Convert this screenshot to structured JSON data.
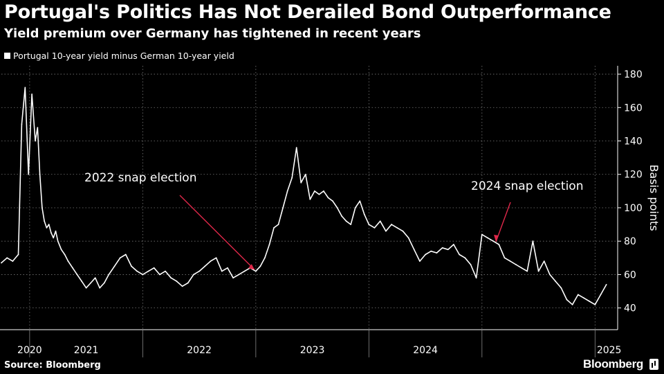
{
  "header": {
    "title": "Portugal's Politics Has Not Derailed Bond Outperformance",
    "subtitle": "Yield premium over Germany has tightened in recent years"
  },
  "legend": {
    "label": "Portugal 10-year yield minus German 10-year yield"
  },
  "footer": {
    "source": "Source: Bloomberg",
    "brand": "Bloomberg"
  },
  "colors": {
    "background": "#000000",
    "line": "#ffffff",
    "annotation_arrow": "#e0284a",
    "grid": "#7a7a7a"
  },
  "chart_data": {
    "type": "line",
    "title": "Portugal's Politics Has Not Derailed Bond Outperformance",
    "subtitle": "Yield premium over Germany has tightened in recent years",
    "xlabel": "",
    "ylabel": "Basis points",
    "ylim": [
      27,
      185
    ],
    "xlim": [
      2019.75,
      2025.2
    ],
    "y_ticks": [
      40,
      60,
      80,
      100,
      120,
      140,
      160,
      180
    ],
    "x_tick_labels": [
      "2020",
      "2021",
      "2022",
      "2023",
      "2024",
      "2025"
    ],
    "year_boundaries": [
      2020.0,
      2021.0,
      2022.0,
      2023.0,
      2024.0,
      2025.0
    ],
    "grid": true,
    "y_axis_position": "right",
    "series": [
      {
        "name": "Portugal 10-year yield minus German 10-year yield",
        "x": [
          2019.75,
          2019.8,
          2019.85,
          2019.9,
          2019.93,
          2019.96,
          2019.99,
          2020.02,
          2020.05,
          2020.07,
          2020.09,
          2020.11,
          2020.13,
          2020.15,
          2020.17,
          2020.19,
          2020.21,
          2020.23,
          2020.25,
          2020.28,
          2020.31,
          2020.34,
          2020.38,
          2020.42,
          2020.46,
          2020.5,
          2020.54,
          2020.58,
          2020.62,
          2020.66,
          2020.7,
          2020.75,
          2020.8,
          2020.85,
          2020.9,
          2020.95,
          2021.0,
          2021.05,
          2021.1,
          2021.15,
          2021.2,
          2021.25,
          2021.3,
          2021.35,
          2021.4,
          2021.45,
          2021.5,
          2021.55,
          2021.6,
          2021.65,
          2021.7,
          2021.75,
          2021.8,
          2021.85,
          2021.9,
          2021.95,
          2022.0,
          2022.04,
          2022.08,
          2022.12,
          2022.16,
          2022.2,
          2022.24,
          2022.28,
          2022.32,
          2022.36,
          2022.4,
          2022.44,
          2022.48,
          2022.52,
          2022.56,
          2022.6,
          2022.64,
          2022.68,
          2022.72,
          2022.76,
          2022.8,
          2022.84,
          2022.88,
          2022.92,
          2022.96,
          2023.0,
          2023.05,
          2023.1,
          2023.15,
          2023.2,
          2023.25,
          2023.3,
          2023.35,
          2023.4,
          2023.45,
          2023.5,
          2023.55,
          2023.6,
          2023.65,
          2023.7,
          2023.75,
          2023.8,
          2023.85,
          2023.9,
          2023.95,
          2024.0,
          2024.05,
          2024.1,
          2024.15,
          2024.2,
          2024.25,
          2024.3,
          2024.35,
          2024.4,
          2024.45,
          2024.5,
          2024.55,
          2024.6,
          2024.65,
          2024.7,
          2024.75,
          2024.8,
          2024.85,
          2024.9,
          2024.95,
          2025.0,
          2025.05,
          2025.1
        ],
        "values": [
          67,
          70,
          68,
          72,
          150,
          172,
          120,
          168,
          140,
          148,
          120,
          100,
          92,
          88,
          90,
          85,
          82,
          86,
          80,
          75,
          72,
          68,
          64,
          60,
          56,
          52,
          55,
          58,
          52,
          55,
          60,
          65,
          70,
          72,
          65,
          62,
          60,
          62,
          64,
          60,
          62,
          58,
          56,
          53,
          55,
          60,
          62,
          65,
          68,
          70,
          62,
          64,
          58,
          60,
          62,
          64,
          62,
          65,
          70,
          78,
          88,
          90,
          100,
          110,
          118,
          136,
          115,
          120,
          105,
          110,
          108,
          110,
          106,
          104,
          100,
          95,
          92,
          90,
          100,
          104,
          96,
          90,
          88,
          92,
          86,
          90,
          88,
          86,
          82,
          75,
          68,
          72,
          74,
          73,
          76,
          75,
          78,
          72,
          70,
          66,
          58,
          84,
          82,
          80,
          78,
          70,
          68,
          66,
          64,
          62,
          80,
          62,
          68,
          60,
          56,
          52,
          45,
          42,
          48,
          46,
          44,
          42,
          48,
          54
        ]
      }
    ],
    "annotations": [
      {
        "text": "2022 snap election",
        "x": 2022.0,
        "y": 60
      },
      {
        "text": "2024 snap election",
        "x": 2024.25,
        "y": 78
      }
    ]
  }
}
